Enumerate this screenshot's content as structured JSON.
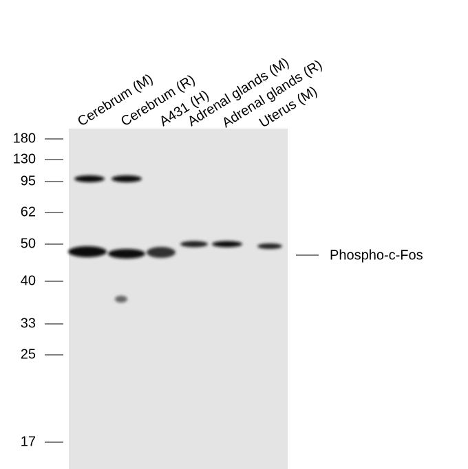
{
  "lanes": [
    "Cerebrum (M)",
    "Cerebrum (R)",
    "A431 (H)",
    "Adrenal glands (M)",
    "Adrenal glands (R)",
    "Uterus (M)"
  ],
  "markers": [
    "180",
    "130",
    "95",
    "62",
    "50",
    "40",
    "33",
    "25",
    "17"
  ],
  "band_label": "Phospho-c-Fos"
}
